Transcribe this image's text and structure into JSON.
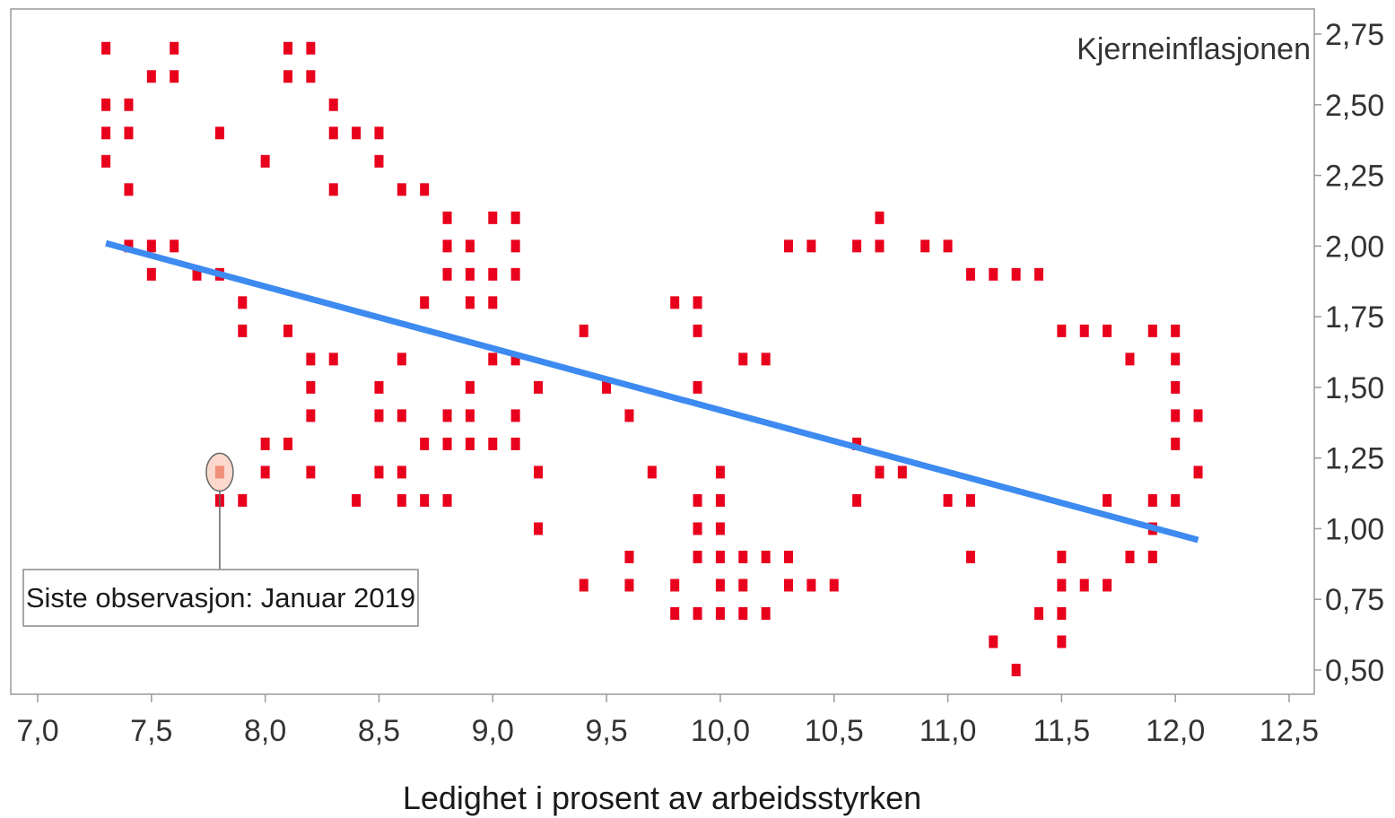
{
  "chart_data": {
    "type": "scatter",
    "xlabel": "Ledighet i prosent av arbeidsstyrken",
    "ylabel": "Kjerneinflasjonen",
    "xlim": [
      7.0,
      12.5
    ],
    "ylim": [
      0.41,
      2.79
    ],
    "x_ticks": [
      7.0,
      7.5,
      8.0,
      8.5,
      9.0,
      9.5,
      10.0,
      10.5,
      11.0,
      11.5,
      12.0,
      12.5
    ],
    "x_tick_labels": [
      "7,0",
      "7,5",
      "8,0",
      "8,5",
      "9,0",
      "9,5",
      "10,0",
      "10,5",
      "11,0",
      "11,5",
      "12,0",
      "12,5"
    ],
    "y_ticks": [
      0.5,
      0.75,
      1.0,
      1.25,
      1.5,
      1.75,
      2.0,
      2.25,
      2.5,
      2.75
    ],
    "y_tick_labels": [
      "0,50",
      "0,75",
      "1,00",
      "1,25",
      "1,50",
      "1,75",
      "2,00",
      "2,25",
      "2,50",
      "2,75"
    ],
    "y_axis_position": "right",
    "grid": false,
    "marker_color": "#e8001c",
    "trend_color": "#3d8af0",
    "highlight_color": "#f0907a",
    "points": [
      [
        7.3,
        2.7
      ],
      [
        7.6,
        2.7
      ],
      [
        8.1,
        2.7
      ],
      [
        8.2,
        2.7
      ],
      [
        7.5,
        2.6
      ],
      [
        7.6,
        2.6
      ],
      [
        8.1,
        2.6
      ],
      [
        8.2,
        2.6
      ],
      [
        7.3,
        2.5
      ],
      [
        7.4,
        2.5
      ],
      [
        8.3,
        2.5
      ],
      [
        7.3,
        2.4
      ],
      [
        7.4,
        2.4
      ],
      [
        7.8,
        2.4
      ],
      [
        8.3,
        2.4
      ],
      [
        8.4,
        2.4
      ],
      [
        8.5,
        2.4
      ],
      [
        7.3,
        2.3
      ],
      [
        8.0,
        2.3
      ],
      [
        8.5,
        2.3
      ],
      [
        7.4,
        2.2
      ],
      [
        8.3,
        2.2
      ],
      [
        8.6,
        2.2
      ],
      [
        8.7,
        2.2
      ],
      [
        8.8,
        2.1
      ],
      [
        9.0,
        2.1
      ],
      [
        9.1,
        2.1
      ],
      [
        10.7,
        2.1
      ],
      [
        7.4,
        2.0
      ],
      [
        7.5,
        2.0
      ],
      [
        7.6,
        2.0
      ],
      [
        8.8,
        2.0
      ],
      [
        8.9,
        2.0
      ],
      [
        9.1,
        2.0
      ],
      [
        10.3,
        2.0
      ],
      [
        10.4,
        2.0
      ],
      [
        10.6,
        2.0
      ],
      [
        10.7,
        2.0
      ],
      [
        10.9,
        2.0
      ],
      [
        11.0,
        2.0
      ],
      [
        7.5,
        1.9
      ],
      [
        7.7,
        1.9
      ],
      [
        7.8,
        1.9
      ],
      [
        8.8,
        1.9
      ],
      [
        8.9,
        1.9
      ],
      [
        9.0,
        1.9
      ],
      [
        9.1,
        1.9
      ],
      [
        11.1,
        1.9
      ],
      [
        11.2,
        1.9
      ],
      [
        11.3,
        1.9
      ],
      [
        11.4,
        1.9
      ],
      [
        7.9,
        1.8
      ],
      [
        8.7,
        1.8
      ],
      [
        8.9,
        1.8
      ],
      [
        9.0,
        1.8
      ],
      [
        9.8,
        1.8
      ],
      [
        9.9,
        1.8
      ],
      [
        7.9,
        1.7
      ],
      [
        8.1,
        1.7
      ],
      [
        9.4,
        1.7
      ],
      [
        9.9,
        1.7
      ],
      [
        11.5,
        1.7
      ],
      [
        11.6,
        1.7
      ],
      [
        11.7,
        1.7
      ],
      [
        11.9,
        1.7
      ],
      [
        12.0,
        1.7
      ],
      [
        8.2,
        1.6
      ],
      [
        8.3,
        1.6
      ],
      [
        8.6,
        1.6
      ],
      [
        9.0,
        1.6
      ],
      [
        9.1,
        1.6
      ],
      [
        10.1,
        1.6
      ],
      [
        10.2,
        1.6
      ],
      [
        11.8,
        1.6
      ],
      [
        12.0,
        1.6
      ],
      [
        8.2,
        1.5
      ],
      [
        8.5,
        1.5
      ],
      [
        8.9,
        1.5
      ],
      [
        9.2,
        1.5
      ],
      [
        9.5,
        1.5
      ],
      [
        9.9,
        1.5
      ],
      [
        12.0,
        1.5
      ],
      [
        8.2,
        1.4
      ],
      [
        8.5,
        1.4
      ],
      [
        8.6,
        1.4
      ],
      [
        8.8,
        1.4
      ],
      [
        8.9,
        1.4
      ],
      [
        9.1,
        1.4
      ],
      [
        9.6,
        1.4
      ],
      [
        12.0,
        1.4
      ],
      [
        12.1,
        1.4
      ],
      [
        8.0,
        1.3
      ],
      [
        8.1,
        1.3
      ],
      [
        8.7,
        1.3
      ],
      [
        8.8,
        1.3
      ],
      [
        8.9,
        1.3
      ],
      [
        9.0,
        1.3
      ],
      [
        9.1,
        1.3
      ],
      [
        10.6,
        1.3
      ],
      [
        12.0,
        1.3
      ],
      [
        8.0,
        1.2
      ],
      [
        8.2,
        1.2
      ],
      [
        8.5,
        1.2
      ],
      [
        8.6,
        1.2
      ],
      [
        9.2,
        1.2
      ],
      [
        9.7,
        1.2
      ],
      [
        10.0,
        1.2
      ],
      [
        10.7,
        1.2
      ],
      [
        10.8,
        1.2
      ],
      [
        12.1,
        1.2
      ],
      [
        7.8,
        1.1
      ],
      [
        7.9,
        1.1
      ],
      [
        8.4,
        1.1
      ],
      [
        8.6,
        1.1
      ],
      [
        8.7,
        1.1
      ],
      [
        8.8,
        1.1
      ],
      [
        9.9,
        1.1
      ],
      [
        10.0,
        1.1
      ],
      [
        10.6,
        1.1
      ],
      [
        11.0,
        1.1
      ],
      [
        11.1,
        1.1
      ],
      [
        11.7,
        1.1
      ],
      [
        11.9,
        1.1
      ],
      [
        12.0,
        1.1
      ],
      [
        9.2,
        1.0
      ],
      [
        9.9,
        1.0
      ],
      [
        10.0,
        1.0
      ],
      [
        11.9,
        1.0
      ],
      [
        9.6,
        0.9
      ],
      [
        9.9,
        0.9
      ],
      [
        10.0,
        0.9
      ],
      [
        10.1,
        0.9
      ],
      [
        10.2,
        0.9
      ],
      [
        10.3,
        0.9
      ],
      [
        11.1,
        0.9
      ],
      [
        11.5,
        0.9
      ],
      [
        11.8,
        0.9
      ],
      [
        11.9,
        0.9
      ],
      [
        9.4,
        0.8
      ],
      [
        9.6,
        0.8
      ],
      [
        9.8,
        0.8
      ],
      [
        10.0,
        0.8
      ],
      [
        10.1,
        0.8
      ],
      [
        10.3,
        0.8
      ],
      [
        10.4,
        0.8
      ],
      [
        10.5,
        0.8
      ],
      [
        11.5,
        0.8
      ],
      [
        11.6,
        0.8
      ],
      [
        11.7,
        0.8
      ],
      [
        9.8,
        0.7
      ],
      [
        9.9,
        0.7
      ],
      [
        10.0,
        0.7
      ],
      [
        10.1,
        0.7
      ],
      [
        10.2,
        0.7
      ],
      [
        11.4,
        0.7
      ],
      [
        11.5,
        0.7
      ],
      [
        11.2,
        0.6
      ],
      [
        11.5,
        0.6
      ],
      [
        11.3,
        0.5
      ]
    ],
    "highlight_point": [
      7.8,
      1.2
    ],
    "trend_line": [
      [
        7.3,
        2.01
      ],
      [
        12.1,
        0.96
      ]
    ],
    "annotations": [
      {
        "text": "Siste observasjon: Januar 2019",
        "points_to": [
          7.8,
          1.2
        ]
      }
    ]
  }
}
